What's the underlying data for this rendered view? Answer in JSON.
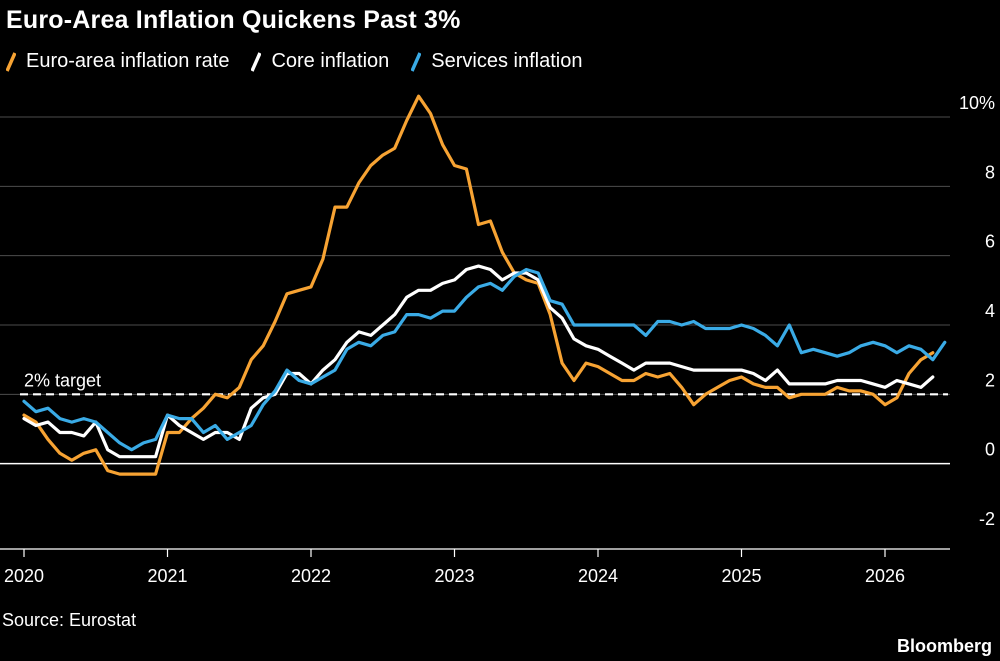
{
  "title": "Euro-Area Inflation Quickens Past 3%",
  "source": "Source: Eurostat",
  "brand": "Bloomberg",
  "colors": {
    "background": "#000000",
    "headline": "#f7a333",
    "core": "#ffffff",
    "services": "#3aabe6",
    "grid": "#4d4d4d"
  },
  "chart_data": {
    "type": "line",
    "title": "Euro-Area Inflation Quickens Past 3%",
    "xlabel": "",
    "ylabel": "",
    "ylim": [
      -2,
      10
    ],
    "yticks": [
      -2,
      0,
      2,
      4,
      6,
      8,
      10
    ],
    "ytick_labels": [
      "-2",
      "0",
      "2",
      "4",
      "6",
      "8",
      "10%"
    ],
    "xticks": [
      2020,
      2021,
      2022,
      2023,
      2024,
      2025,
      2026
    ],
    "xtick_labels": [
      "2020",
      "2021",
      "2022",
      "2023",
      "2024",
      "2025",
      "2026"
    ],
    "xlim": [
      2020,
      2026.5
    ],
    "grid": true,
    "legend_position": "top-left",
    "annotations": [
      {
        "text": "2% target",
        "y": 2,
        "style": "dashed-line"
      }
    ],
    "series": [
      {
        "name": "Euro-area inflation rate",
        "color": "#f7a333",
        "values": [
          [
            2020.0,
            1.4
          ],
          [
            2020.083,
            1.2
          ],
          [
            2020.167,
            0.7
          ],
          [
            2020.25,
            0.3
          ],
          [
            2020.333,
            0.1
          ],
          [
            2020.417,
            0.3
          ],
          [
            2020.5,
            0.4
          ],
          [
            2020.583,
            -0.2
          ],
          [
            2020.667,
            -0.3
          ],
          [
            2020.75,
            -0.3
          ],
          [
            2020.833,
            -0.3
          ],
          [
            2020.917,
            -0.3
          ],
          [
            2021.0,
            0.9
          ],
          [
            2021.083,
            0.9
          ],
          [
            2021.167,
            1.3
          ],
          [
            2021.25,
            1.6
          ],
          [
            2021.333,
            2.0
          ],
          [
            2021.417,
            1.9
          ],
          [
            2021.5,
            2.2
          ],
          [
            2021.583,
            3.0
          ],
          [
            2021.667,
            3.4
          ],
          [
            2021.75,
            4.1
          ],
          [
            2021.833,
            4.9
          ],
          [
            2021.917,
            5.0
          ],
          [
            2022.0,
            5.1
          ],
          [
            2022.083,
            5.9
          ],
          [
            2022.167,
            7.4
          ],
          [
            2022.25,
            7.4
          ],
          [
            2022.333,
            8.1
          ],
          [
            2022.417,
            8.6
          ],
          [
            2022.5,
            8.9
          ],
          [
            2022.583,
            9.1
          ],
          [
            2022.667,
            9.9
          ],
          [
            2022.75,
            10.6
          ],
          [
            2022.833,
            10.1
          ],
          [
            2022.917,
            9.2
          ],
          [
            2023.0,
            8.6
          ],
          [
            2023.083,
            8.5
          ],
          [
            2023.167,
            6.9
          ],
          [
            2023.25,
            7.0
          ],
          [
            2023.333,
            6.1
          ],
          [
            2023.417,
            5.5
          ],
          [
            2023.5,
            5.3
          ],
          [
            2023.583,
            5.2
          ],
          [
            2023.667,
            4.3
          ],
          [
            2023.75,
            2.9
          ],
          [
            2023.833,
            2.4
          ],
          [
            2023.917,
            2.9
          ],
          [
            2024.0,
            2.8
          ],
          [
            2024.083,
            2.6
          ],
          [
            2024.167,
            2.4
          ],
          [
            2024.25,
            2.4
          ],
          [
            2024.333,
            2.6
          ],
          [
            2024.417,
            2.5
          ],
          [
            2024.5,
            2.6
          ],
          [
            2024.583,
            2.2
          ],
          [
            2024.667,
            1.7
          ],
          [
            2024.75,
            2.0
          ],
          [
            2024.833,
            2.2
          ],
          [
            2024.917,
            2.4
          ],
          [
            2025.0,
            2.5
          ],
          [
            2025.083,
            2.3
          ],
          [
            2025.167,
            2.2
          ],
          [
            2025.25,
            2.2
          ],
          [
            2025.333,
            1.9
          ],
          [
            2025.417,
            2.0
          ],
          [
            2025.5,
            2.0
          ],
          [
            2025.583,
            2.0
          ],
          [
            2025.667,
            2.2
          ],
          [
            2025.75,
            2.1
          ],
          [
            2025.833,
            2.1
          ],
          [
            2025.917,
            2.0
          ],
          [
            2026.0,
            1.7
          ],
          [
            2026.083,
            1.9
          ],
          [
            2026.167,
            2.6
          ],
          [
            2026.25,
            3.0
          ],
          [
            2026.333,
            3.2
          ]
        ]
      },
      {
        "name": "Core inflation",
        "color": "#ffffff",
        "values": [
          [
            2020.0,
            1.3
          ],
          [
            2020.083,
            1.1
          ],
          [
            2020.167,
            1.2
          ],
          [
            2020.25,
            0.9
          ],
          [
            2020.333,
            0.9
          ],
          [
            2020.417,
            0.8
          ],
          [
            2020.5,
            1.2
          ],
          [
            2020.583,
            0.4
          ],
          [
            2020.667,
            0.2
          ],
          [
            2020.75,
            0.2
          ],
          [
            2020.833,
            0.2
          ],
          [
            2020.917,
            0.2
          ],
          [
            2021.0,
            1.4
          ],
          [
            2021.083,
            1.1
          ],
          [
            2021.167,
            0.9
          ],
          [
            2021.25,
            0.7
          ],
          [
            2021.333,
            0.9
          ],
          [
            2021.417,
            0.9
          ],
          [
            2021.5,
            0.7
          ],
          [
            2021.583,
            1.6
          ],
          [
            2021.667,
            1.9
          ],
          [
            2021.75,
            2.0
          ],
          [
            2021.833,
            2.6
          ],
          [
            2021.917,
            2.6
          ],
          [
            2022.0,
            2.3
          ],
          [
            2022.083,
            2.7
          ],
          [
            2022.167,
            3.0
          ],
          [
            2022.25,
            3.5
          ],
          [
            2022.333,
            3.8
          ],
          [
            2022.417,
            3.7
          ],
          [
            2022.5,
            4.0
          ],
          [
            2022.583,
            4.3
          ],
          [
            2022.667,
            4.8
          ],
          [
            2022.75,
            5.0
          ],
          [
            2022.833,
            5.0
          ],
          [
            2022.917,
            5.2
          ],
          [
            2023.0,
            5.3
          ],
          [
            2023.083,
            5.6
          ],
          [
            2023.167,
            5.7
          ],
          [
            2023.25,
            5.6
          ],
          [
            2023.333,
            5.3
          ],
          [
            2023.417,
            5.5
          ],
          [
            2023.5,
            5.5
          ],
          [
            2023.583,
            5.3
          ],
          [
            2023.667,
            4.5
          ],
          [
            2023.75,
            4.2
          ],
          [
            2023.833,
            3.6
          ],
          [
            2023.917,
            3.4
          ],
          [
            2024.0,
            3.3
          ],
          [
            2024.083,
            3.1
          ],
          [
            2024.167,
            2.9
          ],
          [
            2024.25,
            2.7
          ],
          [
            2024.333,
            2.9
          ],
          [
            2024.417,
            2.9
          ],
          [
            2024.5,
            2.9
          ],
          [
            2024.583,
            2.8
          ],
          [
            2024.667,
            2.7
          ],
          [
            2024.75,
            2.7
          ],
          [
            2024.833,
            2.7
          ],
          [
            2024.917,
            2.7
          ],
          [
            2025.0,
            2.7
          ],
          [
            2025.083,
            2.6
          ],
          [
            2025.167,
            2.4
          ],
          [
            2025.25,
            2.7
          ],
          [
            2025.333,
            2.3
          ],
          [
            2025.417,
            2.3
          ],
          [
            2025.5,
            2.3
          ],
          [
            2025.583,
            2.3
          ],
          [
            2025.667,
            2.4
          ],
          [
            2025.75,
            2.4
          ],
          [
            2025.833,
            2.4
          ],
          [
            2025.917,
            2.3
          ],
          [
            2026.0,
            2.2
          ],
          [
            2026.083,
            2.4
          ],
          [
            2026.167,
            2.3
          ],
          [
            2026.25,
            2.2
          ],
          [
            2026.333,
            2.5
          ]
        ]
      },
      {
        "name": "Services inflation",
        "color": "#3aabe6",
        "values": [
          [
            2020.0,
            1.8
          ],
          [
            2020.083,
            1.5
          ],
          [
            2020.167,
            1.6
          ],
          [
            2020.25,
            1.3
          ],
          [
            2020.333,
            1.2
          ],
          [
            2020.417,
            1.3
          ],
          [
            2020.5,
            1.2
          ],
          [
            2020.583,
            0.9
          ],
          [
            2020.667,
            0.6
          ],
          [
            2020.75,
            0.4
          ],
          [
            2020.833,
            0.6
          ],
          [
            2020.917,
            0.7
          ],
          [
            2021.0,
            1.4
          ],
          [
            2021.083,
            1.3
          ],
          [
            2021.167,
            1.3
          ],
          [
            2021.25,
            0.9
          ],
          [
            2021.333,
            1.1
          ],
          [
            2021.417,
            0.7
          ],
          [
            2021.5,
            0.9
          ],
          [
            2021.583,
            1.1
          ],
          [
            2021.667,
            1.7
          ],
          [
            2021.75,
            2.1
          ],
          [
            2021.833,
            2.7
          ],
          [
            2021.917,
            2.4
          ],
          [
            2022.0,
            2.3
          ],
          [
            2022.083,
            2.5
          ],
          [
            2022.167,
            2.7
          ],
          [
            2022.25,
            3.3
          ],
          [
            2022.333,
            3.5
          ],
          [
            2022.417,
            3.4
          ],
          [
            2022.5,
            3.7
          ],
          [
            2022.583,
            3.8
          ],
          [
            2022.667,
            4.3
          ],
          [
            2022.75,
            4.3
          ],
          [
            2022.833,
            4.2
          ],
          [
            2022.917,
            4.4
          ],
          [
            2023.0,
            4.4
          ],
          [
            2023.083,
            4.8
          ],
          [
            2023.167,
            5.1
          ],
          [
            2023.25,
            5.2
          ],
          [
            2023.333,
            5.0
          ],
          [
            2023.417,
            5.4
          ],
          [
            2023.5,
            5.6
          ],
          [
            2023.583,
            5.5
          ],
          [
            2023.667,
            4.7
          ],
          [
            2023.75,
            4.6
          ],
          [
            2023.833,
            4.0
          ],
          [
            2023.917,
            4.0
          ],
          [
            2024.0,
            4.0
          ],
          [
            2024.083,
            4.0
          ],
          [
            2024.167,
            4.0
          ],
          [
            2024.25,
            4.0
          ],
          [
            2024.333,
            3.7
          ],
          [
            2024.417,
            4.1
          ],
          [
            2024.5,
            4.1
          ],
          [
            2024.583,
            4.0
          ],
          [
            2024.667,
            4.1
          ],
          [
            2024.75,
            3.9
          ],
          [
            2024.833,
            3.9
          ],
          [
            2024.917,
            3.9
          ],
          [
            2025.0,
            4.0
          ],
          [
            2025.083,
            3.9
          ],
          [
            2025.167,
            3.7
          ],
          [
            2025.25,
            3.4
          ],
          [
            2025.333,
            4.0
          ],
          [
            2025.417,
            3.2
          ],
          [
            2025.5,
            3.3
          ],
          [
            2025.583,
            3.2
          ],
          [
            2025.667,
            3.1
          ],
          [
            2025.75,
            3.2
          ],
          [
            2025.833,
            3.4
          ],
          [
            2025.917,
            3.5
          ],
          [
            2026.0,
            3.4
          ],
          [
            2026.083,
            3.2
          ],
          [
            2026.167,
            3.4
          ],
          [
            2026.25,
            3.3
          ],
          [
            2026.333,
            3.0
          ],
          [
            2026.417,
            3.5
          ]
        ]
      }
    ]
  }
}
